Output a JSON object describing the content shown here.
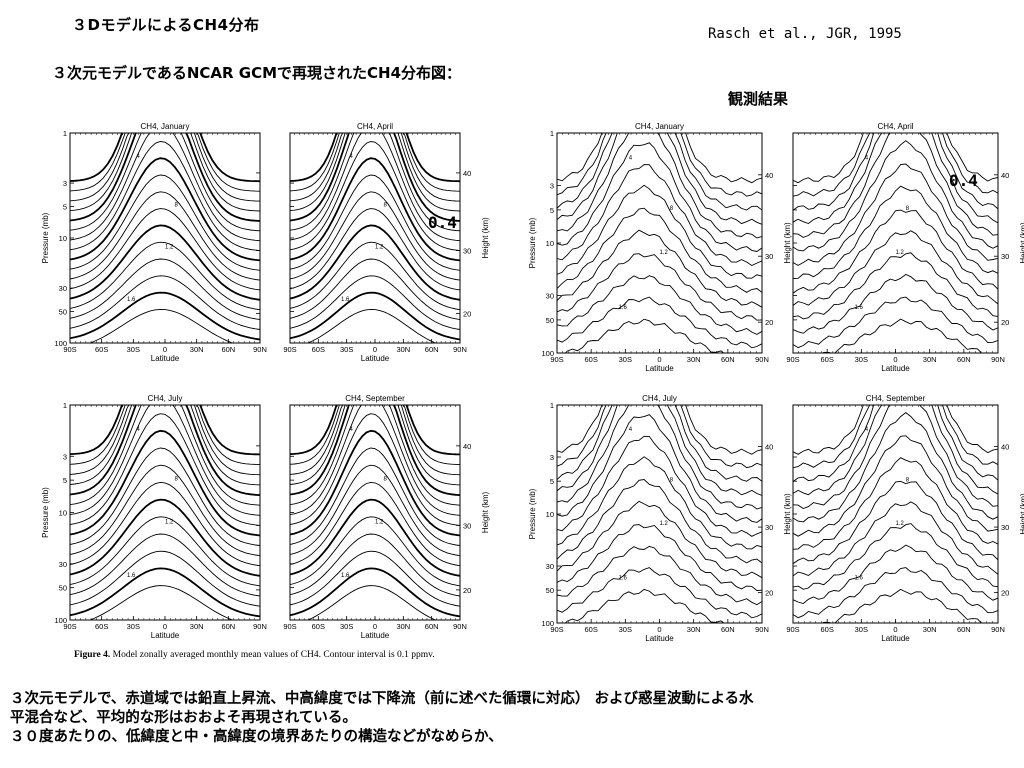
{
  "slide": {
    "title": "３DモデルによるCH4分布",
    "citation": "Rasch et al., JGR, 1995",
    "subtitle": "３次元モデルであるNCAR GCMで再現されたCH4分布図：",
    "observation_label": "観測結果",
    "overlay_label_1": "0.4",
    "overlay_label_2": "0.4",
    "caption_bold": "Figure 4.",
    "caption_text": "Model zonally averaged monthly mean values of CH4. Contour interval is 0.1 ppmv.",
    "bottom_text_line1": "３次元モデルで、赤道域では鉛直上昇流、中高緯度では下降流（前に述べた循環に対応） および惑星波動による水",
    "bottom_text_line2": "平混合など、平均的な形はおおよそ再現されている。",
    "bottom_text_line3": "３０度あたりの、低緯度と中・高緯度の境界あたりの構造などがなめらか、"
  },
  "panels": {
    "model": [
      {
        "title": "CH4, January"
      },
      {
        "title": "CH4, April"
      },
      {
        "title": "CH4, July"
      },
      {
        "title": "CH4, September"
      }
    ],
    "observed": [
      {
        "title": "CH4, January"
      },
      {
        "title": "CH4, April"
      },
      {
        "title": "CH4, July"
      },
      {
        "title": "CH4, September"
      }
    ]
  },
  "axes": {
    "x_label": "Latitude",
    "y_label": "Pressure (mb)",
    "y2_label": "Height (km)",
    "x_ticks": [
      "90S",
      "60S",
      "30S",
      "0",
      "30N",
      "60N",
      "90N"
    ],
    "y_ticks": [
      "1",
      "3",
      "5",
      "10",
      "30",
      "50",
      "100"
    ],
    "y2_ticks": [
      "40",
      "30",
      "20"
    ]
  },
  "contour_labels": [
    "4",
    "8",
    "1.2",
    "1.6"
  ]
}
